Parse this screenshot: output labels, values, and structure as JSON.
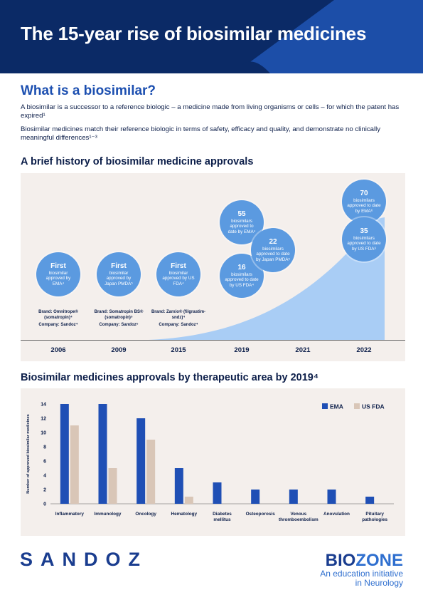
{
  "header": {
    "title": "The 15-year rise of biosimilar medicines"
  },
  "intro": {
    "heading": "What is a biosimilar?",
    "p1": "A biosimilar is a successor to a reference biologic – a medicine made from living organisms or cells – for which the patent has expired¹",
    "p2": "Biosimilar medicines match their reference biologic in terms of safety, efficacy and quality, and demonstrate no clinically meaningful differences¹⁻³"
  },
  "timeline": {
    "heading": "A brief history of biosimilar medicine approvals",
    "years": [
      "2006",
      "2009",
      "2015",
      "2019",
      "2021",
      "2022"
    ],
    "bubbles": [
      {
        "big": "First",
        "small": "biosimilar approved by EMA⁴"
      },
      {
        "big": "First",
        "small": "biosimilar approved by Japan PMDA⁵"
      },
      {
        "big": "First",
        "small": "biosimilar approved by US FDA⁴"
      },
      {
        "big": "55",
        "small": "biosimilars approved to date by EMA⁴"
      },
      {
        "big": "16",
        "small": "biosimilars approved to date by US FDA⁴"
      },
      {
        "big": "22",
        "small": "biosimilars approved to date by Japan PMDA⁵"
      },
      {
        "big": "70",
        "small": "biosimilars approved to date by EMA⁶"
      },
      {
        "big": "35",
        "small": "biosimilars approved to date by US FDA⁶"
      }
    ],
    "brands": [
      {
        "brand": "Brand: Omnitrope® (somatropin)⁴",
        "company": "Company: Sandoz⁴"
      },
      {
        "brand": "Brand: Somatropin BS® (somatropin)⁵",
        "company": "Company: Sandoz⁵"
      },
      {
        "brand": "Brand: Zarxio® (filgrastim-sndz)⁴",
        "company": "Company: Sandoz⁴"
      }
    ],
    "colors": {
      "bubble": "#5b9ae0",
      "area": "#a9cdf5",
      "panel": "#f4efec"
    }
  },
  "chart": {
    "heading": "Biosimilar medicines approvals by therapeutic area by 2019⁴",
    "chart_data": {
      "type": "bar",
      "title": "Biosimilar medicines approvals by therapeutic area by 2019⁴",
      "xlabel": "",
      "ylabel": "Number of approved biosimilar medicines",
      "ylim": [
        0,
        14
      ],
      "yticks": [
        "0",
        "2",
        "4",
        "6",
        "8",
        "10",
        "12",
        "14"
      ],
      "categories": [
        "Inflammatory",
        "Immunology",
        "Oncology",
        "Hematology",
        "Diabetes mellitus",
        "Osteoporosis",
        "Venous thromboembolism",
        "Anovulation",
        "Pituitary pathologies"
      ],
      "category_lines": [
        [
          "Inflammatory"
        ],
        [
          "Immunology"
        ],
        [
          "Oncology"
        ],
        [
          "Hematology"
        ],
        [
          "Diabetes",
          "mellitus"
        ],
        [
          "Osteoporosis"
        ],
        [
          "Venous",
          "thromboembolism"
        ],
        [
          "Anovulation"
        ],
        [
          "Pituitary",
          "pathologies"
        ]
      ],
      "series": [
        {
          "name": "EMA",
          "color": "#1f4fb5",
          "values": [
            14,
            14,
            12,
            5,
            3,
            2,
            2,
            2,
            1
          ]
        },
        {
          "name": "US FDA",
          "color": "#d9c6b7",
          "values": [
            11,
            5,
            9,
            1,
            0,
            0,
            0,
            0,
            0
          ]
        }
      ],
      "grid": false,
      "legend": "top-right"
    }
  },
  "footer": {
    "sandoz": "SANDOZ",
    "biozone_bio": "BIO",
    "biozone_zone": "ZONE",
    "tagline1": "An education initiative",
    "tagline2": "in Neurology"
  }
}
